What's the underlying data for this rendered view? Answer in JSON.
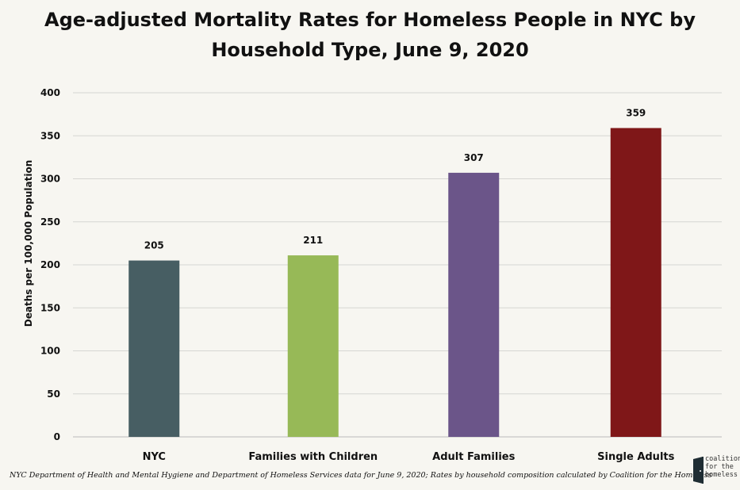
{
  "chart_data": {
    "type": "bar",
    "title": "Age-adjusted Mortality Rates for Homeless People in NYC by Household Type, June 9, 2020",
    "ylabel": "Deaths per 100,000 Population",
    "xlabel": "",
    "categories": [
      "NYC",
      "Families with Children",
      "Adult Families",
      "Single Adults"
    ],
    "values": [
      205,
      211,
      307,
      359
    ],
    "data_labels": [
      "205",
      "211",
      "307",
      "359"
    ],
    "colors": [
      "#475e63",
      "#97b957",
      "#6b5589",
      "#7f1718"
    ],
    "ylim": [
      0,
      400
    ],
    "yticks": [
      "0",
      "50",
      "100",
      "150",
      "200",
      "250",
      "300",
      "350",
      "400"
    ],
    "grid": true
  },
  "footnote": "NYC Department of Health and Mental Hygiene and Department of Homeless Services data for June 9, 2020; Rates by household composition calculated by Coalition for the Homeless",
  "logo": {
    "lines": [
      "coalition",
      "for the",
      "homeless"
    ]
  }
}
